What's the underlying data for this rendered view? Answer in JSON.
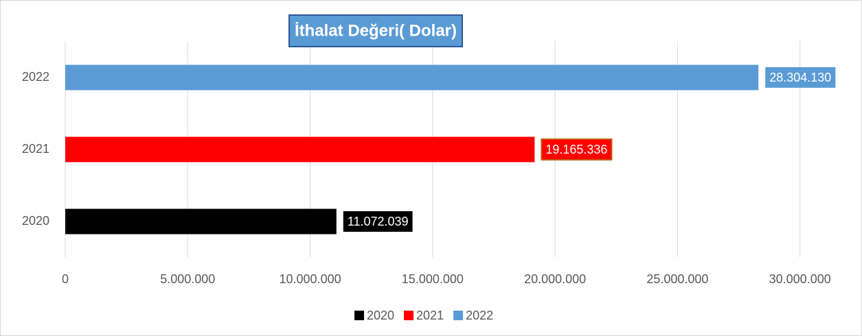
{
  "chart_data": {
    "type": "bar",
    "orientation": "horizontal",
    "title": "İthalat Değeri( Dolar)",
    "categories": [
      "2020",
      "2021",
      "2022"
    ],
    "values": [
      11072039,
      19165336,
      28304130
    ],
    "value_labels": [
      "11.072.039",
      "19.165.336",
      "28.304.130"
    ],
    "colors": [
      "#000000",
      "#ff0000",
      "#5b9bd5"
    ],
    "xlim": [
      0,
      32000000
    ],
    "xticks": [
      0,
      {
        "value": 5000000,
        "label": "5.000.000"
      },
      {
        "value": 10000000,
        "label": "10.000.000"
      },
      {
        "value": 15000000,
        "label": "15.000.000"
      },
      {
        "value": 20000000,
        "label": "20.000.000"
      },
      {
        "value": 25000000,
        "label": "25.000.000"
      },
      {
        "value": 30000000,
        "label": "30.000.000"
      }
    ],
    "grid": true,
    "legend": "bottom"
  }
}
